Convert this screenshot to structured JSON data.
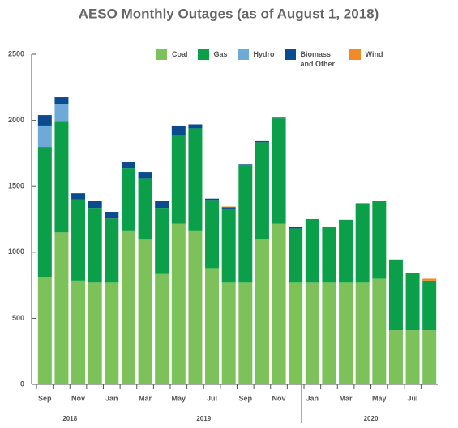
{
  "chart_data": {
    "type": "stacked_bar",
    "title": "AESO Monthly Outages (as of August 1, 2018)",
    "categories": [
      "Sep",
      null,
      "Nov",
      null,
      "Jan",
      null,
      "Mar",
      null,
      "May",
      null,
      "Jul",
      null,
      "Sep",
      null,
      "Nov",
      null,
      "Jan",
      null,
      "Mar",
      null,
      "May",
      null,
      "Jul",
      null
    ],
    "year_labels": [
      "2018",
      "2019",
      "2020"
    ],
    "series": [
      {
        "name": "Coal",
        "color": "#7dc15b",
        "values": [
          815,
          1150,
          785,
          770,
          770,
          1165,
          1095,
          835,
          1215,
          1165,
          880,
          770,
          770,
          1100,
          1215,
          770,
          770,
          770,
          770,
          770,
          800,
          410,
          410,
          410
        ]
      },
      {
        "name": "Gas",
        "color": "#0b9f4a",
        "values": [
          980,
          840,
          615,
          565,
          485,
          470,
          465,
          500,
          670,
          775,
          515,
          560,
          890,
          730,
          800,
          410,
          480,
          425,
          475,
          600,
          590,
          535,
          430,
          375
        ]
      },
      {
        "name": "Hydro",
        "color": "#6ea9d8",
        "values": [
          160,
          130,
          0,
          0,
          0,
          0,
          0,
          0,
          0,
          0,
          0,
          0,
          0,
          0,
          0,
          0,
          0,
          0,
          0,
          0,
          0,
          0,
          0,
          0
        ]
      },
      {
        "name": "Biomass and Other",
        "color": "#0c4a8e",
        "values": [
          85,
          55,
          45,
          50,
          50,
          50,
          45,
          50,
          70,
          30,
          10,
          10,
          5,
          15,
          5,
          15,
          0,
          0,
          0,
          0,
          0,
          0,
          0,
          0
        ]
      },
      {
        "name": "Wind",
        "color": "#f28b26",
        "values": [
          0,
          0,
          0,
          0,
          0,
          0,
          0,
          0,
          0,
          0,
          0,
          5,
          0,
          0,
          0,
          0,
          0,
          0,
          0,
          0,
          0,
          0,
          0,
          15
        ]
      }
    ],
    "ylim": [
      0,
      2500
    ],
    "yticks": [
      0,
      500,
      1000,
      1500,
      2000,
      2500
    ],
    "legend": "top-right"
  }
}
